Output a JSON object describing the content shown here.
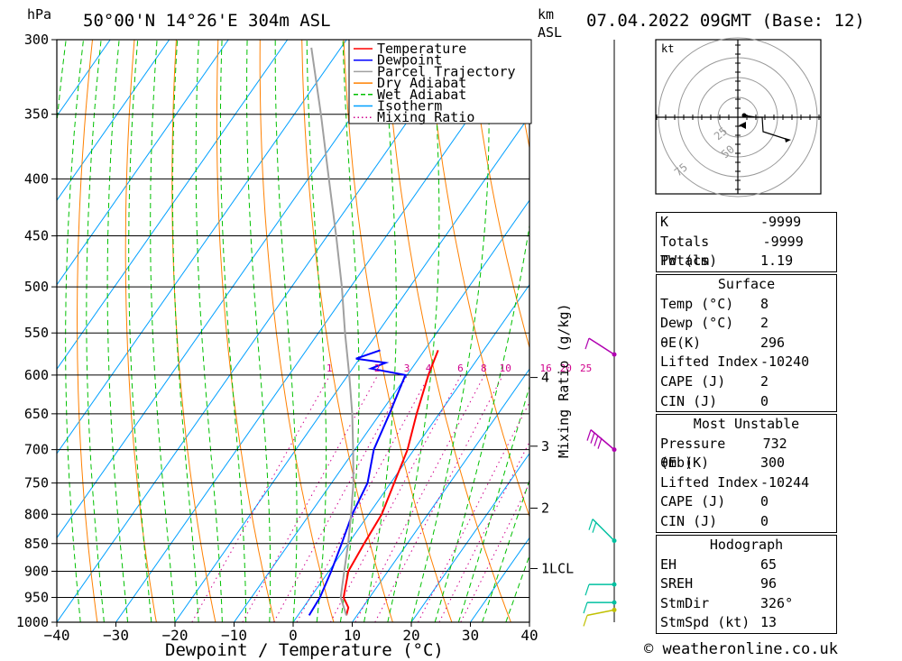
{
  "header": {
    "hpa_label": "hPa",
    "location": "50°00'N 14°26'E 304m ASL",
    "km_label": "km",
    "asl_label": "ASL",
    "datetime": "07.04.2022 09GMT (Base: 12)"
  },
  "chart_data": {
    "type": "line",
    "subtype": "skew-T log-P diagram",
    "xlabel": "Dewpoint / Temperature (°C)",
    "ylabel": "hPa",
    "xlim": [
      -40,
      40
    ],
    "ylim": [
      1000,
      300
    ],
    "x_ticks": [
      "−40",
      "−30",
      "−20",
      "−10",
      "0",
      "10",
      "20",
      "30",
      "40"
    ],
    "pressure_levels": [
      300,
      350,
      400,
      450,
      500,
      550,
      600,
      650,
      700,
      750,
      800,
      850,
      900,
      950,
      1000
    ],
    "legend": [
      "Temperature",
      "Dewpoint",
      "Parcel Trajectory",
      "Dry Adiabat",
      "Wet Adiabat",
      "Isotherm",
      "Mixing Ratio"
    ],
    "legend_position": "top-right",
    "colors": {
      "temperature": "#ff0000",
      "dewpoint": "#0000ff",
      "parcel": "#a0a0a0",
      "dry_adiabat": "#ff8000",
      "wet_adiabat": "#00c000",
      "isotherm": "#00a0ff",
      "mixing_ratio": "#d0008c"
    },
    "series": [
      {
        "name": "Temperature",
        "points": [
          [
            8.2,
            986
          ],
          [
            7.6,
            970
          ],
          [
            5.6,
            950
          ],
          [
            3.3,
            900
          ],
          [
            2.7,
            850
          ],
          [
            2.2,
            800
          ],
          [
            0.6,
            750
          ],
          [
            -1.1,
            700
          ],
          [
            -3.8,
            650
          ],
          [
            -6.4,
            600
          ],
          [
            -7.7,
            570
          ]
        ]
      },
      {
        "name": "Dewpoint",
        "points": [
          [
            1.9,
            986
          ],
          [
            1.6,
            950
          ],
          [
            0.4,
            900
          ],
          [
            -1.1,
            850
          ],
          [
            -2.8,
            800
          ],
          [
            -3.9,
            750
          ],
          [
            -6.8,
            700
          ],
          [
            -8.4,
            650
          ],
          [
            -10.3,
            600
          ],
          [
            -16.9,
            592
          ],
          [
            -15.1,
            585
          ],
          [
            -20.6,
            580
          ],
          [
            -17.5,
            570
          ]
        ]
      },
      {
        "name": "Parcel Trajectory",
        "points": [
          [
            8.2,
            986
          ],
          [
            5.1,
            950
          ],
          [
            2.6,
            900
          ],
          [
            0.0,
            850
          ],
          [
            -3.0,
            800
          ],
          [
            -6.3,
            750
          ],
          [
            -10.3,
            700
          ],
          [
            -14.7,
            650
          ],
          [
            -19.8,
            600
          ],
          [
            -25.5,
            550
          ],
          [
            -31.5,
            500
          ],
          [
            -38.5,
            450
          ],
          [
            -46.5,
            400
          ],
          [
            -55.5,
            350
          ],
          [
            -65.0,
            305
          ]
        ]
      }
    ],
    "mixing_ratio_labels": [
      "1",
      "2",
      "3",
      "4",
      "6",
      "8",
      "10",
      "16",
      "20",
      "25"
    ],
    "mixing_ratio_axis_label": "Mixing Ratio (g/kg)",
    "km_ticks": [
      {
        "label": "4",
        "p": 603
      },
      {
        "label": "3",
        "p": 695
      },
      {
        "label": "2",
        "p": 790
      },
      {
        "label": "1LCL",
        "p": 895
      }
    ]
  },
  "hodograph": {
    "unit": "kt",
    "ring_labels": [
      "25",
      "50",
      "75"
    ]
  },
  "indices": {
    "top": [
      {
        "label": "K",
        "value": "-9999"
      },
      {
        "label": "Totals Totals",
        "value": "-9999"
      },
      {
        "label": "PW (cm)",
        "value": "1.19"
      }
    ],
    "surface": {
      "title": "Surface",
      "rows": [
        {
          "label": "Temp (°C)",
          "value": "8"
        },
        {
          "label": "Dewp (°C)",
          "value": "2"
        },
        {
          "label": "θE(K)",
          "value": "296"
        },
        {
          "label": "Lifted Index",
          "value": "-10240"
        },
        {
          "label": "CAPE (J)",
          "value": "2"
        },
        {
          "label": "CIN (J)",
          "value": "0"
        }
      ]
    },
    "most_unstable": {
      "title": "Most Unstable",
      "rows": [
        {
          "label": "Pressure (mb)",
          "value": "732"
        },
        {
          "label": "θE (K)",
          "value": "300"
        },
        {
          "label": "Lifted Index",
          "value": "-10244"
        },
        {
          "label": "CAPE (J)",
          "value": "0"
        },
        {
          "label": "CIN (J)",
          "value": "0"
        }
      ]
    },
    "hodograph_stats": {
      "title": "Hodograph",
      "rows": [
        {
          "label": "EH",
          "value": "65"
        },
        {
          "label": "SREH",
          "value": "96"
        },
        {
          "label": "StmDir",
          "value": "326°"
        },
        {
          "label": "StmSpd (kt)",
          "value": "13"
        }
      ]
    }
  },
  "copyright": "© weatheronline.co.uk"
}
